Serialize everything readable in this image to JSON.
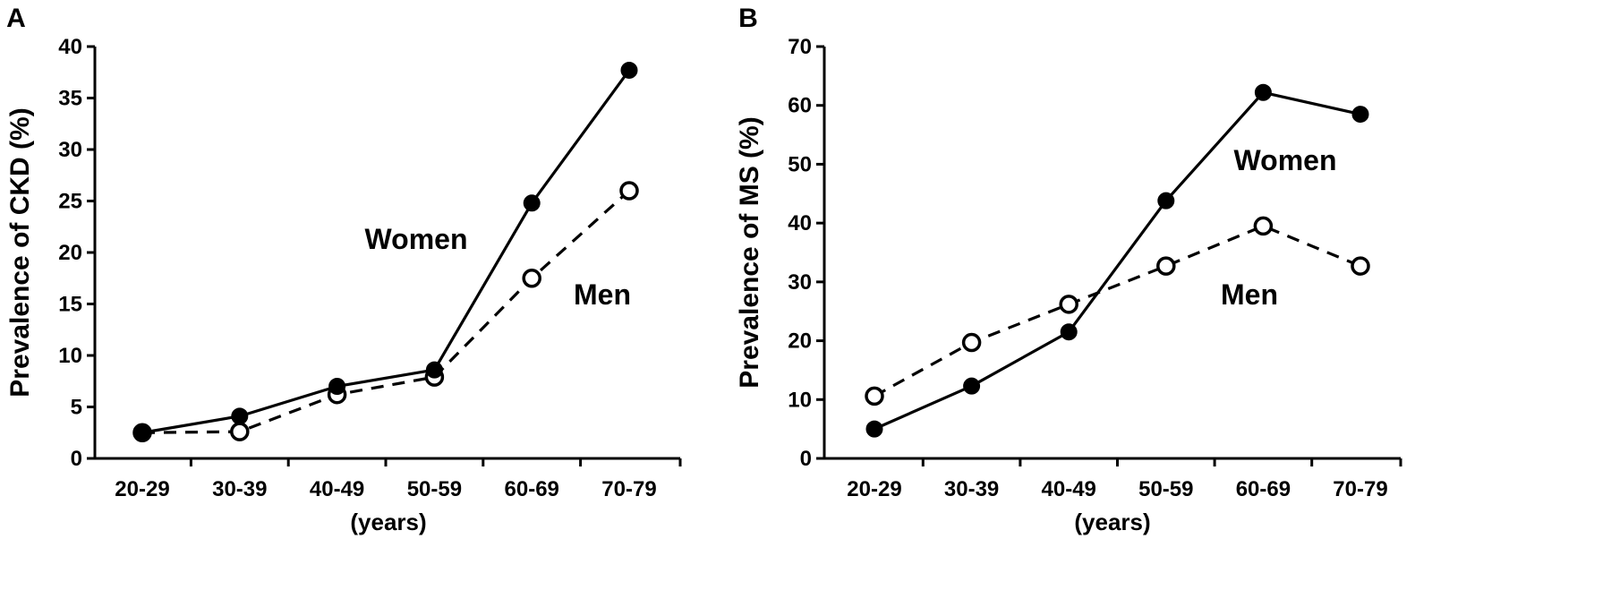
{
  "chart_data": [
    {
      "type": "line",
      "panel": "A",
      "categories": [
        "20-29",
        "30-39",
        "40-49",
        "50-59",
        "60-69",
        "70-79"
      ],
      "series": [
        {
          "name": "Women",
          "style": "solid",
          "marker": "filled",
          "values": [
            2.5,
            4.1,
            7.0,
            8.6,
            24.8,
            37.7
          ]
        },
        {
          "name": "Men",
          "style": "dashed",
          "marker": "open",
          "values": [
            2.5,
            2.6,
            6.2,
            7.9,
            17.5,
            26.0
          ]
        }
      ],
      "xlabel": "(years)",
      "ylabel": "Prevalence of CKD  (%)",
      "ylim": [
        0,
        40
      ],
      "yticks": [
        0,
        5,
        10,
        15,
        20,
        25,
        30,
        35,
        40
      ],
      "annotations": [
        {
          "text": "Women",
          "series": "Women"
        },
        {
          "text": "Men",
          "series": "Men"
        }
      ]
    },
    {
      "type": "line",
      "panel": "B",
      "categories": [
        "20-29",
        "30-39",
        "40-49",
        "50-59",
        "60-69",
        "70-79"
      ],
      "series": [
        {
          "name": "Women",
          "style": "solid",
          "marker": "filled",
          "values": [
            5.0,
            12.3,
            21.5,
            43.8,
            62.2,
            58.5
          ]
        },
        {
          "name": "Men",
          "style": "dashed",
          "marker": "open",
          "values": [
            10.6,
            19.7,
            26.2,
            32.7,
            39.5,
            32.7
          ]
        }
      ],
      "xlabel": "(years)",
      "ylabel": "Prevalence of MS (%)",
      "ylim": [
        0,
        70
      ],
      "yticks": [
        0,
        10,
        20,
        30,
        40,
        50,
        60,
        70
      ],
      "annotations": [
        {
          "text": "Women",
          "series": "Women"
        },
        {
          "text": "Men",
          "series": "Men"
        }
      ]
    }
  ]
}
